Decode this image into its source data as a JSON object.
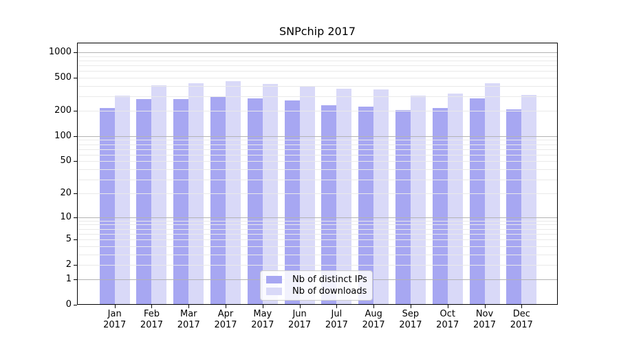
{
  "chart_data": {
    "type": "bar",
    "title": "SNPchip 2017",
    "categories": [
      "Jan",
      "Feb",
      "Mar",
      "Apr",
      "May",
      "Jun",
      "Jul",
      "Aug",
      "Sep",
      "Oct",
      "Nov",
      "Dec"
    ],
    "year_label": "2017",
    "series": [
      {
        "name": "Nb of distinct IPs",
        "color": "#a7a7f2",
        "values": [
          216,
          276,
          277,
          296,
          285,
          268,
          236,
          225,
          206,
          217,
          282,
          211
        ]
      },
      {
        "name": "Nb of downloads",
        "color": "#d9d9f8",
        "values": [
          304,
          405,
          431,
          452,
          421,
          400,
          367,
          363,
          306,
          320,
          429,
          312
        ]
      }
    ],
    "xlabel": "",
    "ylabel": "",
    "y_scale": "log10(1+x)",
    "ylim": [
      0,
      1300
    ],
    "y_ticks": [
      0,
      1,
      2,
      5,
      10,
      20,
      50,
      100,
      200,
      500,
      1000
    ],
    "y_major_gridlines": [
      1,
      10,
      100,
      1000
    ],
    "grid": "on",
    "legend_position": "lower-center-inside"
  },
  "colors": {
    "bar_distinct_ips": "#a7a7f2",
    "bar_downloads": "#d9d9f8",
    "grid_major": "#b3b3b3",
    "grid_minor": "#e9e9e9",
    "axis": "#000000",
    "legend_border": "#cccccc",
    "background": "#ffffff"
  }
}
